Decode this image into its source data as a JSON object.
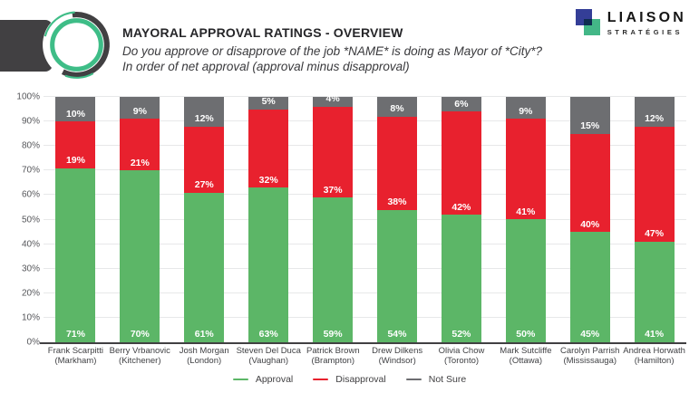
{
  "header": {
    "title": "MAYORAL APPROVAL RATINGS - OVERVIEW",
    "subtitle_line1": "Do you approve or disapprove of the job *NAME* is doing as Mayor of *City*?",
    "subtitle_line2": "In order of net approval (approval minus disapproval)",
    "brand": {
      "name": "LIAISON",
      "tagline": "STRATÉGIES"
    }
  },
  "colors": {
    "approval": "#5CB667",
    "disapproval": "#E8212E",
    "not_sure": "#6D6E71",
    "axis": "#414042",
    "gridline": "#E7E8E9",
    "brand_navy": "#343E97",
    "brand_green": "#43B787"
  },
  "chart_data": {
    "type": "bar",
    "stacked": true,
    "title": "MAYORAL APPROVAL RATINGS - OVERVIEW",
    "categories": [
      [
        "Frank Scarpitti",
        "(Markham)"
      ],
      [
        "Berry Vrbanovic",
        "(Kitchener)"
      ],
      [
        "Josh Morgan",
        "(London)"
      ],
      [
        "Steven Del Duca",
        "(Vaughan)"
      ],
      [
        "Patrick Brown",
        "(Brampton)"
      ],
      [
        "Drew Dilkens",
        "(Windsor)"
      ],
      [
        "Olivia Chow",
        "(Toronto)"
      ],
      [
        "Mark Sutcliffe",
        "(Ottawa)"
      ],
      [
        "Carolyn Parrish",
        "(Mississauga)"
      ],
      [
        "Andrea Horwath",
        "(Hamilton)"
      ]
    ],
    "series": [
      {
        "name": "Approval",
        "color": "#5CB667",
        "values": [
          71,
          70,
          61,
          63,
          59,
          54,
          52,
          50,
          45,
          41
        ]
      },
      {
        "name": "Disapproval",
        "color": "#E8212E",
        "values": [
          19,
          21,
          27,
          32,
          37,
          38,
          42,
          41,
          40,
          47
        ]
      },
      {
        "name": "Not Sure",
        "color": "#6D6E71",
        "values": [
          10,
          9,
          12,
          5,
          4,
          8,
          6,
          9,
          15,
          12
        ]
      }
    ],
    "xlabel": "",
    "ylabel": "",
    "ylim": [
      0,
      100
    ],
    "ytick_step": 10,
    "ytick_format": "{v}%",
    "value_label_format": "{v}%",
    "grid": true,
    "legend_position": "bottom"
  }
}
